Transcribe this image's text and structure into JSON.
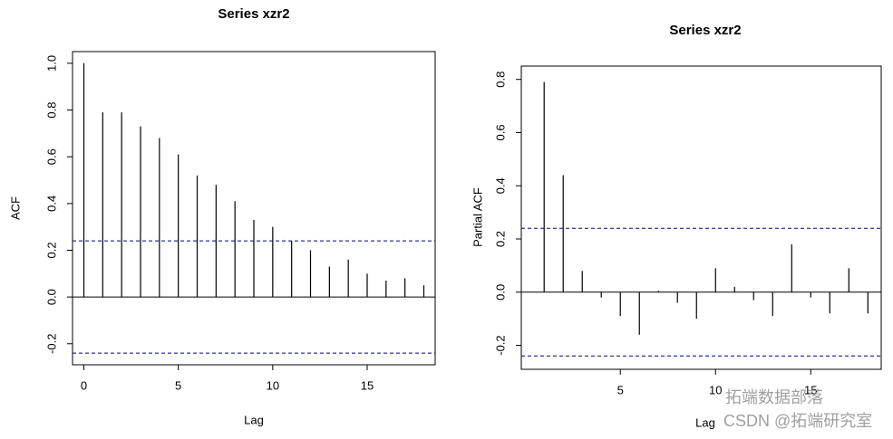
{
  "chart_data": [
    {
      "type": "bar",
      "title": "Series  xzr2",
      "x_label": "Lag",
      "y_label": "ACF",
      "color": "#000000",
      "x": [
        0,
        1,
        2,
        3,
        4,
        5,
        6,
        7,
        8,
        9,
        10,
        11,
        12,
        13,
        14,
        15,
        16,
        17,
        18
      ],
      "values": [
        1.0,
        0.79,
        0.79,
        0.73,
        0.68,
        0.61,
        0.52,
        0.48,
        0.41,
        0.33,
        0.3,
        0.24,
        0.2,
        0.13,
        0.16,
        0.1,
        0.07,
        0.08,
        0.05
      ],
      "conf_limit": 0.24,
      "conf_color": "#00008b",
      "xlim": [
        -0.6,
        18.6
      ],
      "xticks": [
        0,
        5,
        10,
        15
      ],
      "ylim": [
        -0.29,
        1.05
      ],
      "yticks": [
        -0.2,
        {
          "value": 0,
          "label": "0.0"
        },
        0.2,
        0.4,
        0.6,
        0.8,
        {
          "value": 1,
          "label": "1.0"
        }
      ]
    },
    {
      "type": "bar",
      "title": "Series  xzr2",
      "x_label": "Lag",
      "y_label": "Partial ACF",
      "color": "#000000",
      "x": [
        1,
        2,
        3,
        4,
        5,
        6,
        7,
        8,
        9,
        10,
        11,
        12,
        13,
        14,
        15,
        16,
        17,
        18
      ],
      "values": [
        0.79,
        0.44,
        0.08,
        -0.02,
        -0.09,
        -0.16,
        0.005,
        -0.04,
        -0.1,
        0.09,
        0.02,
        -0.03,
        -0.09,
        0.18,
        -0.02,
        -0.08,
        0.09,
        -0.08
      ],
      "conf_limit": 0.24,
      "conf_color": "#00008b",
      "xlim": [
        -0.2,
        18.7
      ],
      "xticks": [
        5,
        10,
        15
      ],
      "ylim": [
        -0.29,
        0.85
      ],
      "yticks": [
        -0.2,
        {
          "value": 0,
          "label": "0.0"
        },
        0.2,
        0.4,
        0.6,
        0.8
      ]
    }
  ],
  "watermark": [
    "拓端数据部落",
    "CSDN @拓端研究室"
  ]
}
